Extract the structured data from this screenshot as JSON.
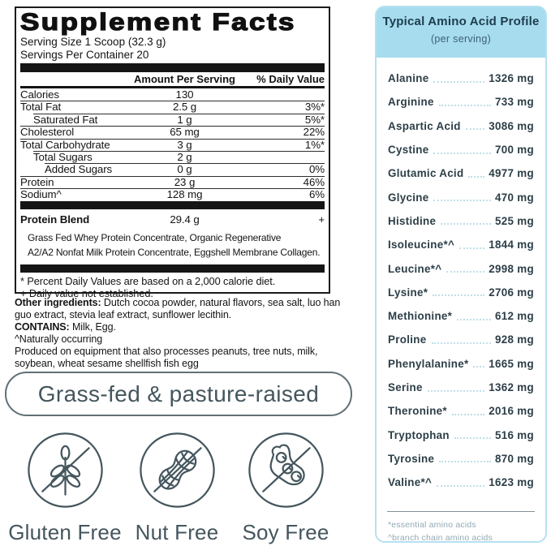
{
  "colors": {
    "header_blue": "#a6dcee",
    "panel_border": "#b5e1f0",
    "amino_text": "#2c3e47",
    "dots": "#bfdfea",
    "footnote_gray": "#93aab5",
    "slate": "#44565d",
    "ink": "#141414"
  },
  "supplement_facts": {
    "title": "Supplement Facts",
    "serving_size": "Serving Size 1 Scoop (32.3 g)",
    "servings_per_container": "Servings Per Container 20",
    "columns": {
      "amount": "Amount Per Serving",
      "daily_value": "% Daily Value"
    },
    "rows": [
      {
        "name": "Calories",
        "amount": "130",
        "dv": "",
        "indent": 0
      },
      {
        "name": "Total Fat",
        "amount": "2.5 g",
        "dv": "3%*",
        "indent": 0
      },
      {
        "name": "Saturated Fat",
        "amount": "1 g",
        "dv": "5%*",
        "indent": 1
      },
      {
        "name": "Cholesterol",
        "amount": "65 mg",
        "dv": "22%",
        "indent": 0
      },
      {
        "name": "Total Carbohydrate",
        "amount": "3 g",
        "dv": "1%*",
        "indent": 0
      },
      {
        "name": "Total Sugars",
        "amount": "2 g",
        "dv": "",
        "indent": 1
      },
      {
        "name": "Added Sugars",
        "amount": "0 g",
        "dv": "0%",
        "indent": 2
      },
      {
        "name": "Protein",
        "amount": "23 g",
        "dv": "46%",
        "indent": 0
      },
      {
        "name": "Sodium^",
        "amount": "128 mg",
        "dv": "6%",
        "indent": 0
      }
    ],
    "protein_blend": {
      "name": "Protein Blend",
      "amount": "29.4 g",
      "dv": "+"
    },
    "protein_blend_ingredients": [
      "Grass Fed Whey Protein Concentrate, Organic Regenerative",
      "A2/A2 Nonfat Milk Protein Concentrate, Eggshell Membrane Collagen."
    ],
    "footnotes": [
      "* Percent Daily Values are based on a 2,000 calorie diet.",
      "+ Daily value not established."
    ]
  },
  "additional_info": {
    "other_ingredients_label": "Other ingredients:",
    "other_ingredients": " Dutch cocoa powder, natural flavors, sea salt, luo han guo extract, stevia leaf extract, sunflower lecithin.",
    "contains_label": "CONTAINS:",
    "contains": " Milk, Egg.",
    "naturally_occurring": "^Naturally occurring",
    "allergen_equipment": "Produced on equipment that also processes peanuts, tree nuts, milk, soybean, wheat  sesame  shellfish  fish  egg"
  },
  "badge": {
    "text": "Grass-fed & pasture-raised"
  },
  "free_badges": [
    {
      "icon": "wheat-icon",
      "label": "Gluten Free"
    },
    {
      "icon": "peanut-icon",
      "label": "Nut Free"
    },
    {
      "icon": "soy-icon",
      "label": "Soy Free"
    }
  ],
  "amino_profile": {
    "title": "Typical Amino Acid Profile",
    "subtitle": "(per serving)",
    "rows": [
      {
        "name": "Alanine",
        "value": "1326 mg"
      },
      {
        "name": "Arginine",
        "value": "733 mg"
      },
      {
        "name": "Aspartic Acid",
        "value": "3086 mg"
      },
      {
        "name": "Cystine",
        "value": "700 mg"
      },
      {
        "name": "Glutamic Acid",
        "value": "4977 mg"
      },
      {
        "name": "Glycine",
        "value": "470 mg"
      },
      {
        "name": "Histidine",
        "value": "525 mg"
      },
      {
        "name": "Isoleucine*^",
        "value": "1844 mg"
      },
      {
        "name": "Leucine*^",
        "value": "2998 mg"
      },
      {
        "name": "Lysine*",
        "value": "2706 mg"
      },
      {
        "name": "Methionine*",
        "value": "612 mg"
      },
      {
        "name": "Proline",
        "value": "928 mg"
      },
      {
        "name": "Phenylalanine*",
        "value": "1665 mg"
      },
      {
        "name": "Serine",
        "value": "1362 mg"
      },
      {
        "name": "Theronine*",
        "value": "2016 mg"
      },
      {
        "name": "Tryptophan",
        "value": "516 mg"
      },
      {
        "name": "Tyrosine",
        "value": "870 mg"
      },
      {
        "name": "Valine*^",
        "value": "1623 mg"
      }
    ],
    "footnotes": [
      "*essential amino acids",
      "^branch chain amino acids"
    ]
  }
}
